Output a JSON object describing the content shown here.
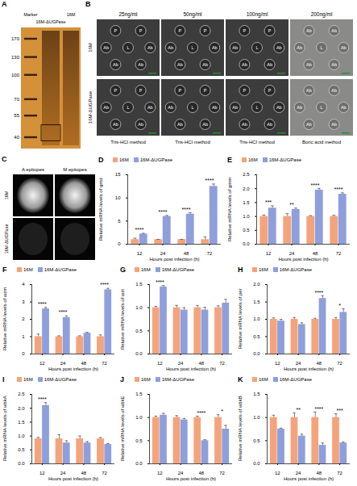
{
  "figure": {
    "A": {
      "panel": "A",
      "lanes": [
        "Marker",
        "16M-ΔUGPase",
        "16M"
      ],
      "marker_sizes": [
        170,
        130,
        100,
        70,
        55,
        40
      ]
    },
    "B": {
      "panel": "B",
      "rows": [
        "16M",
        "16M-ΔUGPase"
      ],
      "columns": [
        {
          "head": "25ng/ml",
          "method": "Tris-HCl method",
          "wells": [
            "P",
            "P",
            "Ab",
            "L",
            "Ab",
            "Ab",
            "Ab"
          ]
        },
        {
          "head": "50ng/ml",
          "method": "Tris-HCl method",
          "wells": [
            "P",
            "P",
            "Ab",
            "L",
            "Ab",
            "Ab",
            "Ab"
          ]
        },
        {
          "head": "100ng/ml",
          "method": "Tris-HCl method",
          "wells": [
            "P",
            "P",
            "Ab",
            "L",
            "Ab",
            "Ab",
            "Ab"
          ]
        },
        {
          "head": "200ng/ml",
          "method": "Boric acid method",
          "wells": [
            "Ab",
            "Ab",
            "Ab",
            "L",
            "Ab",
            "Ab",
            "Ab"
          ]
        }
      ]
    },
    "C": {
      "panel": "C",
      "columns": [
        "A epitopes",
        "M epitopes"
      ],
      "rows": [
        "16M",
        "16M-ΔUGPase"
      ]
    }
  },
  "chart_data": [
    {
      "panel": "D",
      "type": "bar",
      "x_label": "Hours post infection (h)",
      "y_label": "Relative mRNA levels of gmd",
      "categories": [
        "12",
        "24",
        "48",
        "72"
      ],
      "ylim": [
        0,
        15
      ],
      "yticks": [
        0,
        5,
        10,
        15
      ],
      "legend": "top",
      "significance": [
        "****",
        "****",
        "****",
        "****"
      ],
      "series": [
        {
          "name": "16M",
          "color": "#f4a47c",
          "values": [
            1,
            1,
            1,
            1
          ],
          "errors": [
            0.3,
            0.05,
            0.05,
            0.6
          ]
        },
        {
          "name": "16M-ΔUGPase",
          "color": "#8e9fdb",
          "values": [
            2.2,
            6,
            6.5,
            12.5
          ],
          "errors": [
            0.15,
            0.2,
            0.3,
            0.5
          ]
        }
      ]
    },
    {
      "panel": "E",
      "type": "bar",
      "x_label": "Hours post infection (h)",
      "y_label": "Relative mRNA levels of gmm",
      "categories": [
        "12",
        "24",
        "48",
        "72"
      ],
      "ylim": [
        0,
        2.5
      ],
      "yticks": [
        {
          "value": 0,
          "label": "0.0"
        },
        {
          "value": 0.5,
          "label": "0.5"
        },
        {
          "value": 1,
          "label": "1.0"
        },
        {
          "value": 1.5,
          "label": "1.5"
        },
        {
          "value": 2,
          "label": "2.0"
        },
        {
          "value": 2.5,
          "label": "2.5"
        }
      ],
      "legend": "top",
      "significance": [
        "***",
        "**",
        "****",
        "****"
      ],
      "series": [
        {
          "name": "16M",
          "color": "#f4a47c",
          "values": [
            1,
            1,
            1,
            1
          ],
          "errors": [
            0.05,
            0.1,
            0.03,
            0.04
          ]
        },
        {
          "name": "16M-ΔUGPase",
          "color": "#8e9fdb",
          "values": [
            1.3,
            1.25,
            1.95,
            1.8
          ],
          "errors": [
            0.08,
            0.05,
            0.06,
            0.05
          ]
        }
      ]
    },
    {
      "panel": "F",
      "type": "bar",
      "x_label": "Hours post infection (h)",
      "y_label": "Relative mRNA levels of wzm",
      "categories": [
        "12",
        "24",
        "48",
        "72"
      ],
      "ylim": [
        0,
        4
      ],
      "yticks": [
        0,
        1,
        2,
        3,
        4
      ],
      "legend": "top",
      "significance": [
        "****",
        "****",
        null,
        "****"
      ],
      "series": [
        {
          "name": "16M",
          "color": "#f4a47c",
          "values": [
            1,
            1,
            1,
            1
          ],
          "errors": [
            0.15,
            0.05,
            0.05,
            0.1
          ]
        },
        {
          "name": "16M-ΔUGPase",
          "color": "#8e9fdb",
          "values": [
            2.6,
            2.1,
            1.2,
            3.7
          ],
          "errors": [
            0.08,
            0.1,
            0.05,
            0.08
          ]
        }
      ]
    },
    {
      "panel": "G",
      "type": "bar",
      "x_label": "Hours post infection (h)",
      "y_label": "Relative mRNA levels of wzt",
      "categories": [
        "12",
        "24",
        "48",
        "72"
      ],
      "ylim": [
        0,
        1.5
      ],
      "yticks": [
        {
          "value": 0,
          "label": "0.0"
        },
        {
          "value": 0.5,
          "label": "0.5"
        },
        {
          "value": 1,
          "label": "1.0"
        },
        {
          "value": 1.5,
          "label": "1.5"
        }
      ],
      "legend": "top",
      "significance": [
        "****",
        null,
        null,
        null
      ],
      "series": [
        {
          "name": "16M",
          "color": "#f4a47c",
          "values": [
            1,
            1,
            1,
            1
          ],
          "errors": [
            0.03,
            0.05,
            0.05,
            0.04
          ]
        },
        {
          "name": "16M-ΔUGPase",
          "color": "#8e9fdb",
          "values": [
            1.45,
            0.95,
            0.95,
            1.1
          ],
          "errors": [
            0.03,
            0.05,
            0.06,
            0.08
          ]
        }
      ]
    },
    {
      "panel": "H",
      "type": "bar",
      "x_label": "Hours post infection (h)",
      "y_label": "Relative mRNA levels of per",
      "categories": [
        "12",
        "24",
        "48",
        "72"
      ],
      "ylim": [
        0,
        2
      ],
      "yticks": [
        {
          "value": 0,
          "label": "0.0"
        },
        {
          "value": 0.5,
          "label": "0.5"
        },
        {
          "value": 1,
          "label": "1.0"
        },
        {
          "value": 1.5,
          "label": "1.5"
        },
        {
          "value": 2,
          "label": "2.0"
        }
      ],
      "legend": "top",
      "significance": [
        null,
        null,
        "****",
        "*"
      ],
      "series": [
        {
          "name": "16M",
          "color": "#f4a47c",
          "values": [
            1,
            1,
            1,
            1
          ],
          "errors": [
            0.04,
            0.05,
            0.03,
            0.05
          ]
        },
        {
          "name": "16M-ΔUGPase",
          "color": "#8e9fdb",
          "values": [
            0.95,
            0.85,
            1.6,
            1.2
          ],
          "errors": [
            0.05,
            0.05,
            0.08,
            0.1
          ]
        }
      ]
    },
    {
      "panel": "I",
      "type": "bar",
      "x_label": "Hours post infection (h)",
      "y_label": "Relative mRNA levels of wbkA",
      "categories": [
        "12",
        "24",
        "48",
        "72"
      ],
      "ylim": [
        0,
        2.5
      ],
      "yticks": [
        {
          "value": 0,
          "label": "0.0"
        },
        {
          "value": 0.5,
          "label": "0.5"
        },
        {
          "value": 1,
          "label": "1.0"
        },
        {
          "value": 1.5,
          "label": "1.5"
        },
        {
          "value": 2,
          "label": "2.0"
        },
        {
          "value": 2.5,
          "label": "2.5"
        }
      ],
      "legend": "top",
      "significance": [
        "****",
        null,
        null,
        null
      ],
      "series": [
        {
          "name": "16M",
          "color": "#f4a47c",
          "values": [
            0.9,
            0.9,
            0.9,
            0.9
          ],
          "errors": [
            0.05,
            0.15,
            0.1,
            0.05
          ]
        },
        {
          "name": "16M-ΔUGPase",
          "color": "#8e9fdb",
          "values": [
            2.1,
            0.75,
            0.75,
            0.7
          ],
          "errors": [
            0.1,
            0.08,
            0.05,
            0.03
          ]
        }
      ]
    },
    {
      "panel": "J",
      "type": "bar",
      "x_label": "Hours post infection (h)",
      "y_label": "Relative mRNA levels of wbkE",
      "categories": [
        "12",
        "24",
        "48",
        "72"
      ],
      "ylim": [
        0,
        1.5
      ],
      "yticks": [
        {
          "value": 0,
          "label": "0.0"
        },
        {
          "value": 0.5,
          "label": "0.5"
        },
        {
          "value": 1,
          "label": "1.0"
        },
        {
          "value": 1.5,
          "label": "1.5"
        }
      ],
      "legend": "top",
      "significance": [
        null,
        null,
        "****",
        "*"
      ],
      "series": [
        {
          "name": "16M",
          "color": "#f4a47c",
          "values": [
            1,
            1,
            1,
            1
          ],
          "errors": [
            0.03,
            0.04,
            0.03,
            0.06
          ]
        },
        {
          "name": "16M-ΔUGPase",
          "color": "#8e9fdb",
          "values": [
            1.05,
            0.95,
            0.5,
            0.75
          ],
          "errors": [
            0.04,
            0.03,
            0.02,
            0.08
          ]
        }
      ]
    },
    {
      "panel": "K",
      "type": "bar",
      "x_label": "Hours post infection (h)",
      "y_label": "Relative mRNA levels of wbkB",
      "categories": [
        "12",
        "24",
        "48",
        "72"
      ],
      "ylim": [
        0,
        1.5
      ],
      "yticks": [
        {
          "value": 0,
          "label": "0.0"
        },
        {
          "value": 0.5,
          "label": "0.5"
        },
        {
          "value": 1,
          "label": "1.0"
        },
        {
          "value": 1.5,
          "label": "1.5"
        }
      ],
      "legend": "top",
      "significance": [
        null,
        "**",
        "****",
        "***"
      ],
      "series": [
        {
          "name": "16M",
          "color": "#f4a47c",
          "values": [
            1,
            1,
            1,
            1
          ],
          "errors": [
            0.05,
            0.1,
            0.12,
            0.08
          ]
        },
        {
          "name": "16M-ΔUGPase",
          "color": "#8e9fdb",
          "values": [
            0.75,
            0.6,
            0.4,
            0.45
          ],
          "errors": [
            0.02,
            0.04,
            0.05,
            0.02
          ]
        }
      ]
    }
  ]
}
